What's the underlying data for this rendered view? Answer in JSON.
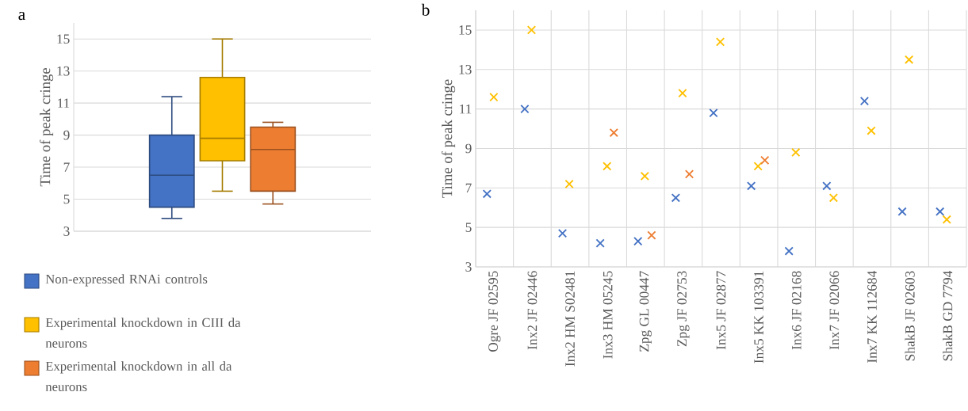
{
  "chart_data": [
    {
      "type": "box",
      "title": "a",
      "ylabel": "Time of peak cringe",
      "categories": [
        null
      ],
      "series": [
        {
          "name": "Non-expressed RNAi controls",
          "color": "#4472c4",
          "boxes": [
            {
              "low": 3.8,
              "q1": 4.5,
              "median": 6.5,
              "q3": 9.0,
              "high": 11.4
            }
          ]
        },
        {
          "name": "Experimental knockdown in CIII da neurons",
          "color": "#ffc000",
          "boxes": [
            {
              "low": 5.5,
              "q1": 7.4,
              "median": 8.8,
              "q3": 12.6,
              "high": 15.0
            }
          ]
        },
        {
          "name": "Experimental knockdown in all da neurons",
          "color": "#ed7d31",
          "boxes": [
            {
              "low": 4.7,
              "q1": 5.5,
              "median": 8.1,
              "q3": 9.5,
              "high": 9.8
            }
          ]
        }
      ],
      "ylim": [
        3,
        16
      ],
      "yticks": [
        3,
        5,
        7,
        9,
        11,
        13,
        15
      ],
      "grid": "y",
      "legend": "bottom"
    },
    {
      "type": "scatter",
      "title": "b",
      "ylabel": "Time of peak cringe",
      "categories": [
        "Ogre JF 02595",
        "Inx2 JF 02446",
        "Inx2 HM S02481",
        "Inx3 HM 05245",
        "Zpg GL 00447",
        "Zpg JF 02753",
        "Inx5 JF 02877",
        "Inx5 KK 103391",
        "Inx6 JF 02168",
        "Inx7 JF 02066",
        "Inx7 KK 112684",
        "ShakB JF 02603",
        "ShakB GD 7794"
      ],
      "series": [
        {
          "color": "#4472c4",
          "values": [
            6.7,
            11.0,
            4.7,
            4.2,
            4.3,
            6.5,
            10.8,
            7.1,
            3.8,
            7.1,
            11.4,
            5.8,
            5.8
          ]
        },
        {
          "color": "#ffc000",
          "values": [
            11.6,
            15.0,
            7.2,
            8.1,
            7.6,
            11.8,
            14.4,
            8.1,
            8.8,
            6.5,
            9.9,
            13.5,
            5.4
          ]
        },
        {
          "color": "#ed7d31",
          "values": [
            null,
            null,
            null,
            9.8,
            4.6,
            7.7,
            null,
            8.4,
            null,
            null,
            null,
            null,
            null
          ]
        }
      ],
      "ylim": [
        3,
        16
      ],
      "yticks": [
        3,
        5,
        7,
        9,
        11,
        13,
        15
      ],
      "grid": true,
      "marker": "cross"
    }
  ]
}
